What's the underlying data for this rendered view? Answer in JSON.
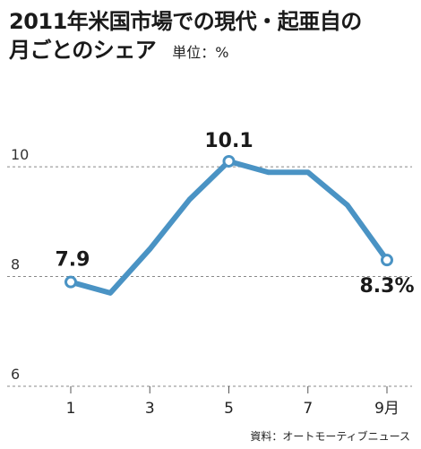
{
  "title_line1": "2011年米国市場での現代・起亜自の",
  "title_line2": "月ごとのシェア",
  "unit": "単位：%",
  "source": "資料：オートモーティブニュース",
  "chart_data": {
    "type": "line",
    "title": "2011年米国市場での現代・起亜自の月ごとのシェア",
    "xlabel": "",
    "ylabel": "",
    "x": [
      1,
      2,
      3,
      4,
      5,
      6,
      7,
      8,
      9
    ],
    "x_tick_values": [
      1,
      3,
      5,
      7,
      9
    ],
    "x_tick_labels": [
      "1",
      "3",
      "5",
      "7",
      "9月"
    ],
    "y_tick_values": [
      6,
      8,
      10
    ],
    "y_tick_labels": [
      "6",
      "8",
      "10"
    ],
    "ylim": [
      6,
      10.9
    ],
    "grid": "horizontal dashed",
    "series": [
      {
        "values": [
          7.9,
          7.7,
          8.5,
          9.4,
          10.1,
          9.9,
          9.9,
          9.3,
          8.3
        ]
      }
    ],
    "data_labels": [
      {
        "index": 0,
        "text": "7.9"
      },
      {
        "index": 4,
        "text": "10.1"
      },
      {
        "index": 8,
        "text": "8.3%"
      }
    ],
    "colors": {
      "line": "#4a93c4",
      "grid": "#888888",
      "axis": "#555555"
    }
  }
}
